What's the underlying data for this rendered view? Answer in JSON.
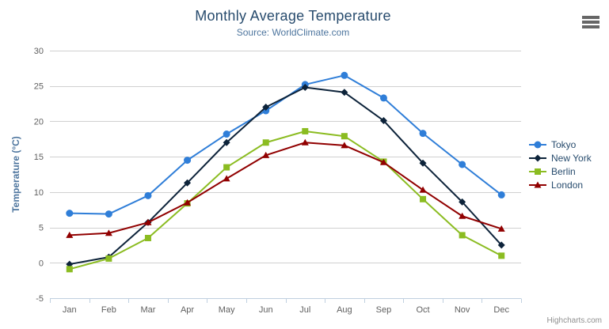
{
  "header": {
    "title": "Monthly Average Temperature",
    "subtitle": "Source: WorldClimate.com"
  },
  "credits": "Highcharts.com",
  "menu_icon": "hamburger-icon",
  "colors": {
    "title": "#274b6d",
    "subtitle": "#4d759e",
    "axis_labels": "#606060",
    "y_axis_title": "#4d759e",
    "legend_text": "#274b6d",
    "gridline": "#d0d0d0",
    "axis_line": "#c0d0e0",
    "credits_text": "#909090",
    "menu_icon": "#666666"
  },
  "chart_data": {
    "type": "line",
    "title": "Monthly Average Temperature",
    "subtitle": "Source: WorldClimate.com",
    "xlabel": "",
    "ylabel": "Temperature (°C)",
    "ylim": [
      -5,
      30
    ],
    "ytick_step": 5,
    "grid": true,
    "legend_position": "right",
    "categories": [
      "Jan",
      "Feb",
      "Mar",
      "Apr",
      "May",
      "Jun",
      "Jul",
      "Aug",
      "Sep",
      "Oct",
      "Nov",
      "Dec"
    ],
    "series": [
      {
        "name": "Tokyo",
        "color": "#2f7ed8",
        "marker": "circle",
        "values": [
          7.0,
          6.9,
          9.5,
          14.5,
          18.2,
          21.5,
          25.2,
          26.5,
          23.3,
          18.3,
          13.9,
          9.6
        ]
      },
      {
        "name": "New York",
        "color": "#0d233a",
        "marker": "diamond",
        "values": [
          -0.2,
          0.8,
          5.7,
          11.3,
          17.0,
          22.0,
          24.8,
          24.1,
          20.1,
          14.1,
          8.6,
          2.5
        ]
      },
      {
        "name": "Berlin",
        "color": "#8bbc21",
        "marker": "square",
        "values": [
          -0.9,
          0.6,
          3.5,
          8.4,
          13.5,
          17.0,
          18.6,
          17.9,
          14.3,
          9.0,
          3.9,
          1.0
        ]
      },
      {
        "name": "London",
        "color": "#910000",
        "marker": "triangle",
        "values": [
          3.9,
          4.2,
          5.7,
          8.5,
          11.9,
          15.2,
          17.0,
          16.6,
          14.2,
          10.3,
          6.6,
          4.8
        ]
      }
    ]
  }
}
